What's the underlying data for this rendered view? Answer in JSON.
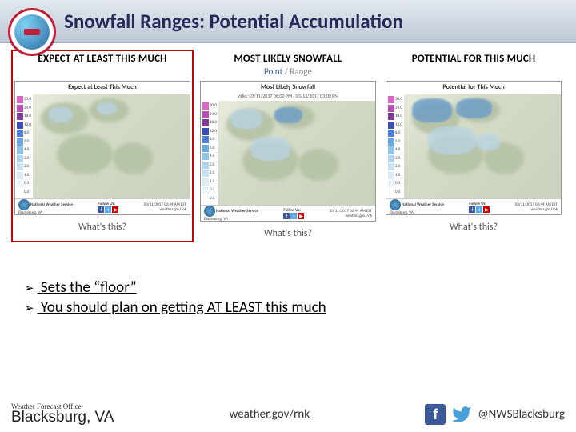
{
  "header": {
    "title": "Snowfall Ranges: Potential Accumulation"
  },
  "panels": [
    {
      "title": "EXPECT AT LEAST THIS MUCH",
      "subtitle_point": "",
      "subtitle_range": "",
      "map_title": "Expect at Least This Much",
      "map_valid": "",
      "highlighted": true
    },
    {
      "title": "MOST LIKELY SNOWFALL",
      "subtitle_point": "Point",
      "subtitle_sep": " / ",
      "subtitle_range": "Range",
      "map_title": "Most Likely Snowfall",
      "map_valid": "Valid: 03/11/2017 08:00 PM - 03/13/2017 03:00 PM",
      "highlighted": false
    },
    {
      "title": "POTENTIAL FOR THIS MUCH",
      "subtitle_point": "",
      "subtitle_range": "",
      "map_title": "Potential for This Much",
      "map_valid": "",
      "highlighted": false
    }
  ],
  "legend": {
    "values": [
      "30.0",
      "24.0",
      "18.0",
      "12.0",
      "8.0",
      "6.0",
      "4.0",
      "3.0",
      "2.0",
      "1.0",
      "0.1",
      "0.0"
    ],
    "colors": [
      "#d966c2",
      "#b84db8",
      "#7d3d99",
      "#3d4db8",
      "#4d7dd9",
      "#6ba8e6",
      "#8cc4ec",
      "#aed4f0",
      "#c9e2f4",
      "#dcebf6",
      "#eaf3fa",
      "#ffffff"
    ]
  },
  "map_footer": {
    "agency": "National Weather Service",
    "office": "Blacksburg, VA",
    "timestamp": "03/11/2017 03:44 AM EST",
    "follow": "Follow Us:",
    "url": "weather.gov/rnk"
  },
  "whats_this": "What's this?",
  "bullets": [
    "Sets the “floor”",
    "You should plan on getting AT LEAST this much"
  ],
  "footer": {
    "office_label": "Weather Forecast Office",
    "office_city": "Blacksburg, VA",
    "url": "weather.gov/rnk",
    "handle": "@NWSBlacksburg"
  }
}
